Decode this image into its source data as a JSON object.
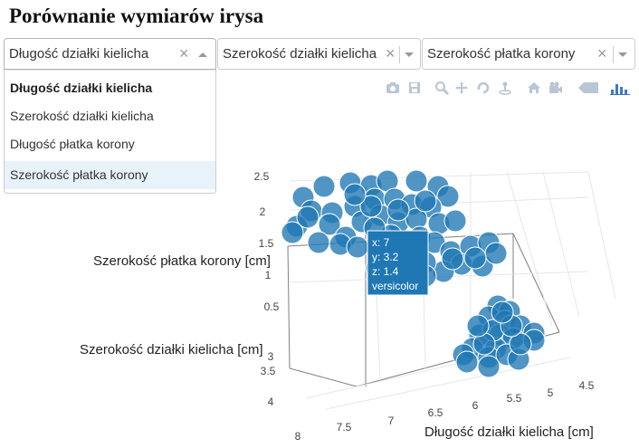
{
  "title": "Porównanie wymiarów irysa",
  "dropdowns": [
    {
      "value": "Długość działki kielicha",
      "open": true
    },
    {
      "value": "Szerokość działki kielicha",
      "open": false
    },
    {
      "value": "Szerokość płatka korony",
      "open": false
    }
  ],
  "menu_options": [
    "Długość działki kielicha",
    "Szerokość działki kielicha",
    "Długość płatka korony",
    "Szerokość płatka korony"
  ],
  "modebar_icons": [
    "camera-icon",
    "save-icon",
    "zoom-icon",
    "pan-icon",
    "orbit-rotation-icon",
    "turntable-rotation-icon",
    "home-icon",
    "camera-reset-icon",
    "hover-closest-icon",
    "plotly-logo-icon"
  ],
  "chart_data": {
    "type": "scatter3d",
    "axes": {
      "x": {
        "label": "Długość działki kielicha [cm]",
        "ticks": [
          "8",
          "7.5",
          "7",
          "6.5",
          "6",
          "5.5",
          "5",
          "4.5"
        ]
      },
      "y": {
        "label": "Szerokość działki kielicha [cm]",
        "ticks": [
          "4",
          "3.5",
          "3"
        ]
      },
      "z": {
        "label": "Szerokość płatka korony [cm]",
        "ticks": [
          "2.5",
          "2",
          "1.5",
          "1",
          "0.5"
        ]
      }
    },
    "marker_color": "#1f77b4",
    "hover": {
      "x": "x: 7",
      "y": "y: 3.2",
      "z": "z: 1.4",
      "label": "versicolor"
    }
  }
}
